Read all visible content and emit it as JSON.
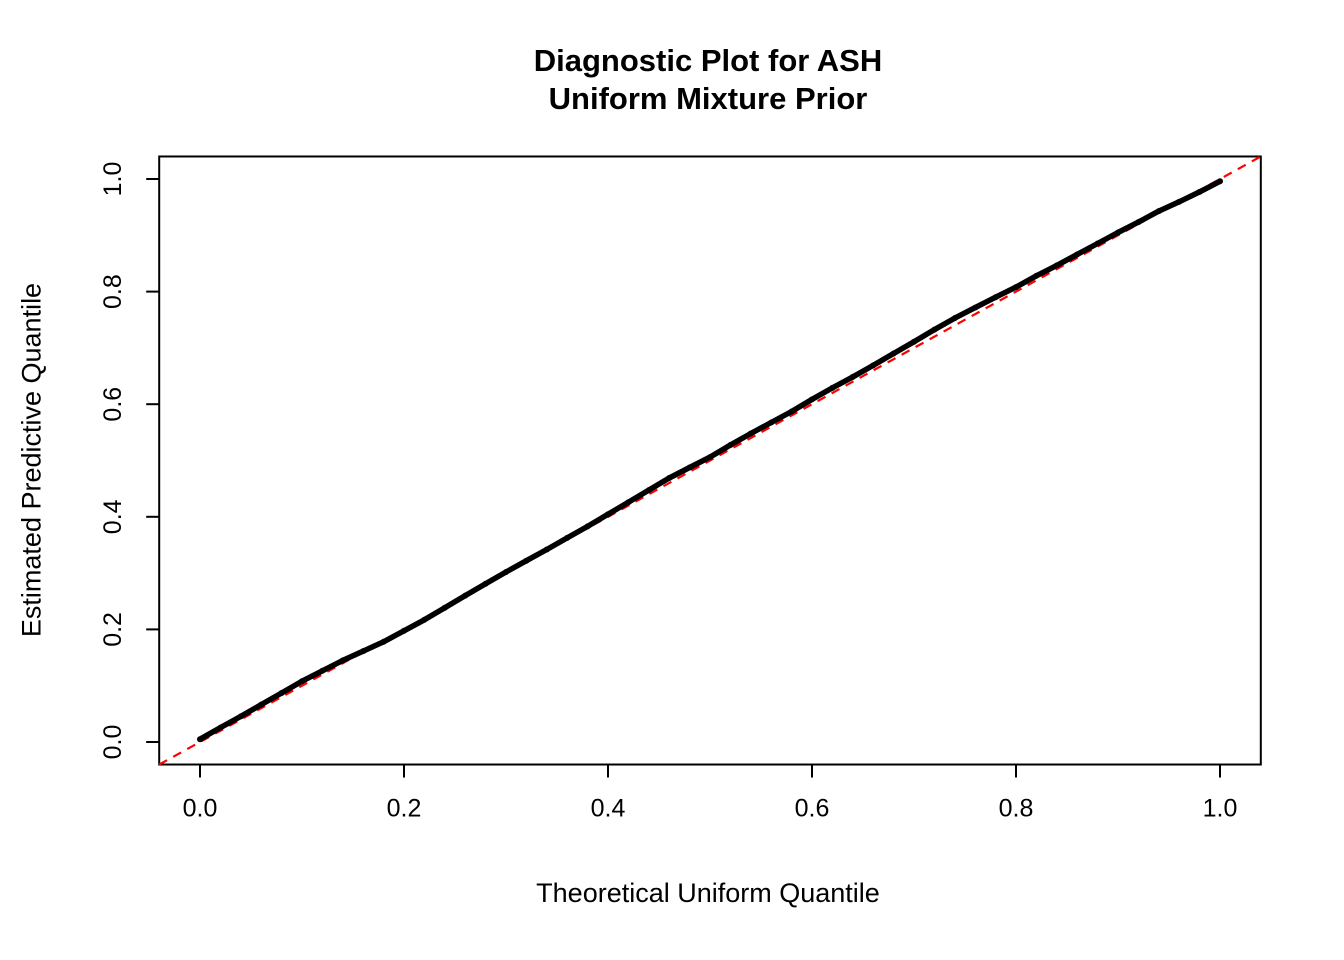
{
  "chart_data": {
    "type": "scatter",
    "title": "Diagnostic Plot for ASH\nUniform Mixture Prior",
    "title_lines": [
      "Diagnostic Plot for ASH",
      "Uniform Mixture Prior"
    ],
    "xlabel": "Theoretical Uniform Quantile",
    "ylabel": "Estimated Predictive Quantile",
    "xlim": [
      -0.04,
      1.04
    ],
    "ylim": [
      -0.04,
      1.04
    ],
    "grid": false,
    "legend": "none",
    "background_color": "#FFFFFF",
    "xticks": {
      "values": [
        0,
        0.2,
        0.4,
        0.6,
        0.8,
        1.0
      ],
      "labels": [
        "0.0",
        "0.2",
        "0.4",
        "0.6",
        "0.8",
        "1.0"
      ]
    },
    "yticks": {
      "values": [
        0,
        0.2,
        0.4,
        0.6,
        0.8,
        1.0
      ],
      "labels": [
        "0.0",
        "0.2",
        "0.4",
        "0.6",
        "0.8",
        "1.0"
      ]
    },
    "reference_line": {
      "slope": 1,
      "intercept": 0,
      "color": "#FF0000",
      "style": "dashed",
      "description": "y = x identity line"
    },
    "series": [
      {
        "name": "Estimated predictive quantiles vs theoretical uniform quantiles",
        "color": "#000000",
        "marker": "point",
        "points": [
          [
            0.0,
            0.005
          ],
          [
            0.02,
            0.0255
          ],
          [
            0.04,
            0.0455
          ],
          [
            0.06,
            0.0665
          ],
          [
            0.08,
            0.087
          ],
          [
            0.1,
            0.108
          ],
          [
            0.12,
            0.1265
          ],
          [
            0.14,
            0.145
          ],
          [
            0.16,
            0.1615
          ],
          [
            0.18,
            0.178
          ],
          [
            0.2,
            0.1975
          ],
          [
            0.22,
            0.217
          ],
          [
            0.24,
            0.2385
          ],
          [
            0.26,
            0.26
          ],
          [
            0.28,
            0.281
          ],
          [
            0.3,
            0.302
          ],
          [
            0.32,
            0.322
          ],
          [
            0.34,
            0.342
          ],
          [
            0.36,
            0.3625
          ],
          [
            0.38,
            0.383
          ],
          [
            0.4,
            0.4045
          ],
          [
            0.42,
            0.426
          ],
          [
            0.44,
            0.4475
          ],
          [
            0.46,
            0.469
          ],
          [
            0.48,
            0.4875
          ],
          [
            0.5,
            0.506
          ],
          [
            0.52,
            0.5275
          ],
          [
            0.54,
            0.548
          ],
          [
            0.56,
            0.5675
          ],
          [
            0.58,
            0.587
          ],
          [
            0.6,
            0.6085
          ],
          [
            0.62,
            0.629
          ],
          [
            0.64,
            0.6485
          ],
          [
            0.66,
            0.669
          ],
          [
            0.68,
            0.69
          ],
          [
            0.7,
            0.711
          ],
          [
            0.72,
            0.7325
          ],
          [
            0.74,
            0.753
          ],
          [
            0.76,
            0.7715
          ],
          [
            0.78,
            0.79
          ],
          [
            0.8,
            0.808
          ],
          [
            0.82,
            0.828
          ],
          [
            0.84,
            0.8465
          ],
          [
            0.86,
            0.866
          ],
          [
            0.88,
            0.8855
          ],
          [
            0.9,
            0.905
          ],
          [
            0.92,
            0.9235
          ],
          [
            0.94,
            0.943
          ],
          [
            0.96,
            0.9595
          ],
          [
            0.98,
            0.977
          ],
          [
            1.0,
            0.996
          ]
        ]
      }
    ]
  }
}
